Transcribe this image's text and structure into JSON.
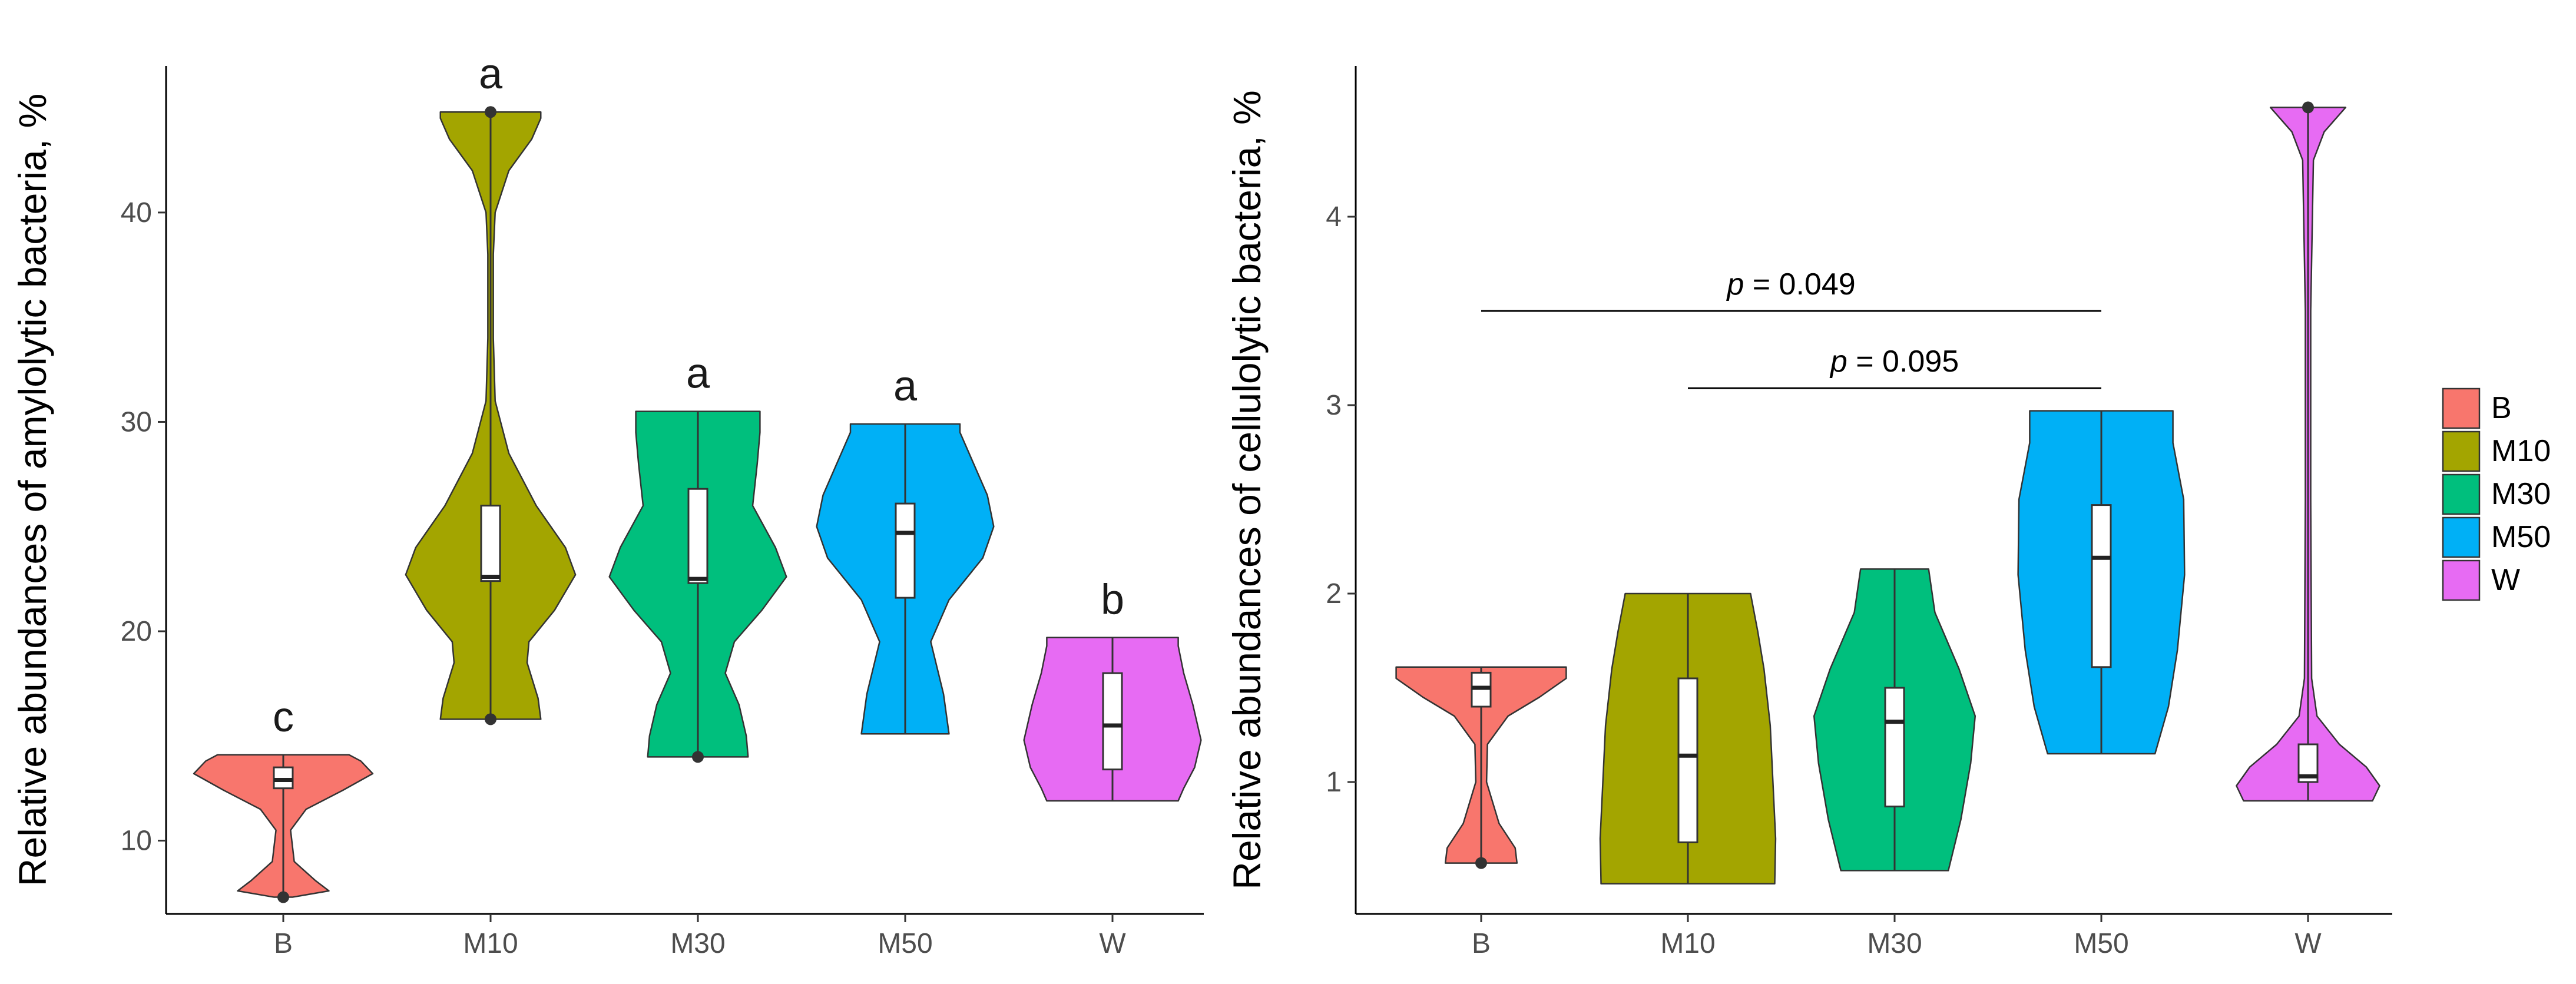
{
  "chart_data": [
    {
      "type": "violin",
      "ylabel": "Relative abundances of amylolytic bacteria, %",
      "xlabel": "",
      "categories": [
        "B",
        "M10",
        "M30",
        "M50",
        "W"
      ],
      "ylim": [
        6.5,
        47
      ],
      "yticks": [
        10,
        20,
        30,
        40
      ],
      "grid": false,
      "groups": [
        {
          "name": "B",
          "color": "#F8766D",
          "min": 7.3,
          "q1": 12.5,
          "median": 12.9,
          "q3": 13.5,
          "max": 14.1,
          "outliers": [
            7.3
          ],
          "letter": "c",
          "profile": [
            [
              7.3,
              0.1
            ],
            [
              7.6,
              0.5
            ],
            [
              8.1,
              0.35
            ],
            [
              9.0,
              0.12
            ],
            [
              10.5,
              0.08
            ],
            [
              11.5,
              0.25
            ],
            [
              12.4,
              0.65
            ],
            [
              13.2,
              0.98
            ],
            [
              13.8,
              0.85
            ],
            [
              14.1,
              0.72
            ]
          ]
        },
        {
          "name": "M10",
          "color": "#A3A500",
          "min": 15.8,
          "q1": 22.4,
          "median": 22.6,
          "q3": 26.0,
          "max": 44.8,
          "outliers": [
            15.8,
            44.8
          ],
          "letter": "a",
          "profile": [
            [
              15.8,
              0.55
            ],
            [
              16.8,
              0.52
            ],
            [
              18.5,
              0.4
            ],
            [
              19.5,
              0.42
            ],
            [
              21,
              0.7
            ],
            [
              22.7,
              0.93
            ],
            [
              24,
              0.82
            ],
            [
              26,
              0.5
            ],
            [
              28.5,
              0.2
            ],
            [
              31,
              0.05
            ],
            [
              34,
              0.03
            ],
            [
              38,
              0.03
            ],
            [
              40,
              0.05
            ],
            [
              42,
              0.2
            ],
            [
              43.5,
              0.45
            ],
            [
              44.5,
              0.55
            ],
            [
              44.8,
              0.55
            ]
          ]
        },
        {
          "name": "M30",
          "color": "#00BF7D",
          "min": 14.0,
          "q1": 22.3,
          "median": 22.5,
          "q3": 26.8,
          "max": 30.5,
          "outliers": [
            14.0
          ],
          "letter": "a",
          "profile": [
            [
              14.0,
              0.55
            ],
            [
              15,
              0.53
            ],
            [
              16.5,
              0.45
            ],
            [
              18,
              0.3
            ],
            [
              19.5,
              0.4
            ],
            [
              21,
              0.7
            ],
            [
              22.6,
              0.97
            ],
            [
              24,
              0.85
            ],
            [
              26,
              0.6
            ],
            [
              28,
              0.65
            ],
            [
              29.5,
              0.68
            ],
            [
              30.5,
              0.68
            ]
          ]
        },
        {
          "name": "M50",
          "color": "#00B0F6",
          "min": 15.1,
          "q1": 21.6,
          "median": 24.7,
          "q3": 26.1,
          "max": 29.9,
          "outliers": [],
          "letter": "a",
          "profile": [
            [
              15.1,
              0.48
            ],
            [
              17,
              0.42
            ],
            [
              19.5,
              0.28
            ],
            [
              21.5,
              0.48
            ],
            [
              23.5,
              0.85
            ],
            [
              25,
              0.97
            ],
            [
              26.5,
              0.9
            ],
            [
              28,
              0.75
            ],
            [
              29.5,
              0.6
            ],
            [
              29.9,
              0.6
            ]
          ]
        },
        {
          "name": "W",
          "color": "#E76BF3",
          "min": 11.9,
          "q1": 13.4,
          "median": 15.5,
          "q3": 18.0,
          "max": 19.7,
          "outliers": [],
          "letter": "b",
          "profile": [
            [
              11.9,
              0.72
            ],
            [
              12.5,
              0.78
            ],
            [
              13.5,
              0.9
            ],
            [
              14.8,
              0.97
            ],
            [
              16.5,
              0.88
            ],
            [
              18,
              0.78
            ],
            [
              19.3,
              0.72
            ],
            [
              19.7,
              0.72
            ]
          ]
        }
      ]
    },
    {
      "type": "violin",
      "ylabel": "Relative abundances of cellulolytic bacteria, %",
      "xlabel": "",
      "categories": [
        "B",
        "M10",
        "M30",
        "M50",
        "W"
      ],
      "ylim": [
        0.3,
        4.8
      ],
      "yticks": [
        1,
        2,
        3,
        4
      ],
      "grid": false,
      "groups": [
        {
          "name": "B",
          "color": "#F8766D",
          "min": 0.57,
          "q1": 1.4,
          "median": 1.5,
          "q3": 1.58,
          "max": 1.61,
          "outliers": [
            0.57
          ],
          "letter": "",
          "profile": [
            [
              0.57,
              0.4
            ],
            [
              0.65,
              0.38
            ],
            [
              0.78,
              0.2
            ],
            [
              1.0,
              0.06
            ],
            [
              1.2,
              0.07
            ],
            [
              1.35,
              0.3
            ],
            [
              1.45,
              0.65
            ],
            [
              1.55,
              0.95
            ],
            [
              1.61,
              0.95
            ]
          ]
        },
        {
          "name": "M10",
          "color": "#A3A500",
          "min": 0.46,
          "q1": 0.68,
          "median": 1.14,
          "q3": 1.55,
          "max": 2.0,
          "outliers": [],
          "letter": "",
          "profile": [
            [
              0.46,
              0.97
            ],
            [
              0.7,
              0.98
            ],
            [
              1.0,
              0.95
            ],
            [
              1.3,
              0.92
            ],
            [
              1.6,
              0.85
            ],
            [
              1.8,
              0.78
            ],
            [
              2.0,
              0.7
            ]
          ]
        },
        {
          "name": "M30",
          "color": "#00BF7D",
          "min": 0.53,
          "q1": 0.87,
          "median": 1.32,
          "q3": 1.5,
          "max": 2.13,
          "outliers": [],
          "letter": "",
          "profile": [
            [
              0.53,
              0.6
            ],
            [
              0.8,
              0.74
            ],
            [
              1.1,
              0.85
            ],
            [
              1.35,
              0.9
            ],
            [
              1.6,
              0.72
            ],
            [
              1.9,
              0.45
            ],
            [
              2.13,
              0.38
            ]
          ]
        },
        {
          "name": "M50",
          "color": "#00B0F6",
          "min": 1.15,
          "q1": 1.61,
          "median": 2.19,
          "q3": 2.47,
          "max": 2.97,
          "outliers": [],
          "letter": "",
          "profile": [
            [
              1.15,
              0.6
            ],
            [
              1.4,
              0.75
            ],
            [
              1.7,
              0.85
            ],
            [
              2.1,
              0.93
            ],
            [
              2.5,
              0.92
            ],
            [
              2.8,
              0.8
            ],
            [
              2.97,
              0.8
            ]
          ]
        },
        {
          "name": "W",
          "color": "#E76BF3",
          "min": 0.9,
          "q1": 1.0,
          "median": 1.03,
          "q3": 1.2,
          "max": 4.58,
          "outliers": [
            4.58
          ],
          "letter": "",
          "profile": [
            [
              0.9,
              0.72
            ],
            [
              0.98,
              0.8
            ],
            [
              1.08,
              0.65
            ],
            [
              1.2,
              0.35
            ],
            [
              1.35,
              0.1
            ],
            [
              1.55,
              0.04
            ],
            [
              2.5,
              0.03
            ],
            [
              3.5,
              0.03
            ],
            [
              4.3,
              0.06
            ],
            [
              4.45,
              0.18
            ],
            [
              4.58,
              0.42
            ]
          ]
        }
      ],
      "annotations": [
        {
          "p_symbol": "p",
          "text": " = 0.049",
          "from": "B",
          "to": "M50",
          "y": 3.5
        },
        {
          "p_symbol": "p",
          "text": " = 0.095",
          "from": "M10",
          "to": "M50",
          "y": 3.09
        }
      ],
      "legend": {
        "position": "right",
        "entries": [
          "B",
          "M10",
          "M30",
          "M50",
          "W"
        ]
      }
    }
  ]
}
